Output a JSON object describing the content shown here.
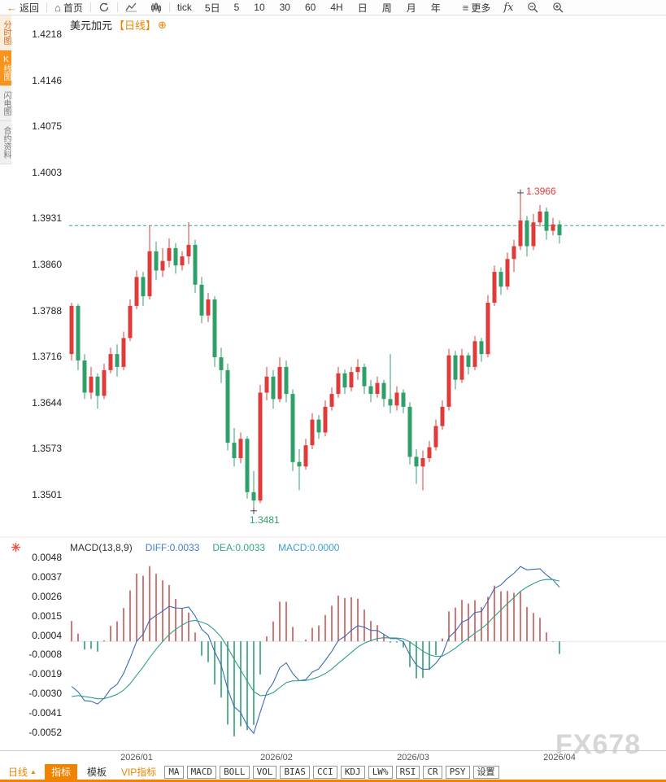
{
  "toolbar": {
    "back": "返回",
    "home": "首页",
    "tick": "tick",
    "five_day": "5日",
    "periods": [
      "5",
      "10",
      "30",
      "60",
      "4H",
      "日",
      "周",
      "月",
      "年"
    ],
    "more": "更多",
    "fx": "fx"
  },
  "icons": {
    "back": "←",
    "home": "⌂",
    "more": "≡",
    "add": "⊕",
    "up_triangle": "▲"
  },
  "sidebar": {
    "tabs": [
      {
        "label": "分时图",
        "kind": "hot"
      },
      {
        "label": "K线图",
        "kind": "active"
      },
      {
        "label": "闪电图",
        "kind": "plain"
      },
      {
        "label": "合约资料",
        "kind": "plain"
      }
    ]
  },
  "chart": {
    "title": "美元加元",
    "period_tag": "【日线】"
  },
  "colors": {
    "up": "#e03b3b",
    "down": "#2fa06a",
    "diff_line": "#3a6db5",
    "dea_line": "#2f9e8f",
    "hist_up": "#cc5555",
    "hist_down": "#2f9e74",
    "current_price_line": "#3a9e9e",
    "accent": "#f08300",
    "annotation_high": "#e03b3b",
    "annotation_low": "#2fa06a"
  },
  "chart_data": [
    {
      "type": "candlestick",
      "title": "美元加元",
      "period": "日线",
      "y_ticks": [
        "1.4218",
        "1.4146",
        "1.4075",
        "1.4003",
        "1.3931",
        "1.3860",
        "1.3788",
        "1.3716",
        "1.3644",
        "1.3573",
        "1.3501"
      ],
      "x_labels": [
        {
          "label": "2026/01",
          "index": 10
        },
        {
          "label": "2026/02",
          "index": 31.5
        },
        {
          "label": "2026/03",
          "index": 52.5
        },
        {
          "label": "2026/04",
          "index": 75
        }
      ],
      "current_price": 1.392,
      "annotations": {
        "high": {
          "index": 69,
          "price": 1.3966,
          "label": "1.3966"
        },
        "low": {
          "index": 28,
          "price": 1.3481,
          "label": "1.3481"
        }
      },
      "candles": [
        [
          1.372,
          1.38,
          1.371,
          1.3795
        ],
        [
          1.3795,
          1.3798,
          1.3695,
          1.371
        ],
        [
          1.371,
          1.372,
          1.365,
          1.366
        ],
        [
          1.366,
          1.37,
          1.365,
          1.3685
        ],
        [
          1.3685,
          1.369,
          1.3635,
          1.3655
        ],
        [
          1.3655,
          1.3705,
          1.365,
          1.3695
        ],
        [
          1.3695,
          1.373,
          1.369,
          1.372
        ],
        [
          1.372,
          1.3735,
          1.3685,
          1.37
        ],
        [
          1.37,
          1.3755,
          1.3695,
          1.3745
        ],
        [
          1.3745,
          1.3805,
          1.374,
          1.3795
        ],
        [
          1.3795,
          1.385,
          1.379,
          1.384
        ],
        [
          1.384,
          1.3848,
          1.3795,
          1.381
        ],
        [
          1.381,
          1.392,
          1.3805,
          1.388
        ],
        [
          1.388,
          1.3895,
          1.3835,
          1.385
        ],
        [
          1.385,
          1.3885,
          1.384,
          1.3865
        ],
        [
          1.3865,
          1.39,
          1.3855,
          1.3885
        ],
        [
          1.3885,
          1.3893,
          1.3845,
          1.3858
        ],
        [
          1.3858,
          1.388,
          1.385,
          1.3872
        ],
        [
          1.3872,
          1.3925,
          1.386,
          1.389
        ],
        [
          1.389,
          1.3898,
          1.3815,
          1.3828
        ],
        [
          1.3828,
          1.384,
          1.3768,
          1.378
        ],
        [
          1.378,
          1.3815,
          1.377,
          1.3805
        ],
        [
          1.3805,
          1.381,
          1.37,
          1.3715
        ],
        [
          1.3715,
          1.373,
          1.3675,
          1.3695
        ],
        [
          1.3695,
          1.3705,
          1.357,
          1.3582
        ],
        [
          1.3582,
          1.3605,
          1.3545,
          1.3558
        ],
        [
          1.3558,
          1.3598,
          1.355,
          1.3588
        ],
        [
          1.3588,
          1.3592,
          1.3495,
          1.3505
        ],
        [
          1.3505,
          1.3538,
          1.3481,
          1.3492
        ],
        [
          1.3492,
          1.3672,
          1.3488,
          1.366
        ],
        [
          1.366,
          1.37,
          1.3648,
          1.3685
        ],
        [
          1.3685,
          1.3695,
          1.3635,
          1.365
        ],
        [
          1.365,
          1.3715,
          1.3645,
          1.37
        ],
        [
          1.37,
          1.371,
          1.3645,
          1.3658
        ],
        [
          1.3658,
          1.3665,
          1.3538,
          1.3552
        ],
        [
          1.3552,
          1.3572,
          1.3508,
          1.3545
        ],
        [
          1.3545,
          1.3588,
          1.354,
          1.3578
        ],
        [
          1.3578,
          1.3628,
          1.3572,
          1.3618
        ],
        [
          1.3618,
          1.3625,
          1.3588,
          1.3598
        ],
        [
          1.3598,
          1.3648,
          1.3592,
          1.3638
        ],
        [
          1.3638,
          1.3668,
          1.3632,
          1.3658
        ],
        [
          1.3658,
          1.37,
          1.3652,
          1.369
        ],
        [
          1.369,
          1.3696,
          1.3658,
          1.3668
        ],
        [
          1.3668,
          1.37,
          1.3662,
          1.3692
        ],
        [
          1.3692,
          1.3712,
          1.368,
          1.37
        ],
        [
          1.37,
          1.3705,
          1.3658,
          1.367
        ],
        [
          1.367,
          1.368,
          1.3645,
          1.3658
        ],
        [
          1.3658,
          1.3685,
          1.3652,
          1.3675
        ],
        [
          1.3675,
          1.368,
          1.3638,
          1.365
        ],
        [
          1.365,
          1.372,
          1.3628,
          1.364
        ],
        [
          1.364,
          1.367,
          1.3632,
          1.366
        ],
        [
          1.366,
          1.3665,
          1.3628,
          1.3638
        ],
        [
          1.3638,
          1.3645,
          1.3548,
          1.356
        ],
        [
          1.356,
          1.3572,
          1.3518,
          1.3545
        ],
        [
          1.3545,
          1.357,
          1.3508,
          1.3558
        ],
        [
          1.3558,
          1.3585,
          1.3552,
          1.3575
        ],
        [
          1.3575,
          1.3618,
          1.357,
          1.3608
        ],
        [
          1.3608,
          1.3648,
          1.3602,
          1.3638
        ],
        [
          1.3638,
          1.3728,
          1.3632,
          1.3718
        ],
        [
          1.3718,
          1.3725,
          1.3665,
          1.368
        ],
        [
          1.368,
          1.3728,
          1.3675,
          1.3718
        ],
        [
          1.3718,
          1.3722,
          1.3688,
          1.37
        ],
        [
          1.37,
          1.3748,
          1.3695,
          1.374
        ],
        [
          1.374,
          1.3745,
          1.3708,
          1.372
        ],
        [
          1.372,
          1.3812,
          1.3715,
          1.38
        ],
        [
          1.38,
          1.3858,
          1.3795,
          1.3848
        ],
        [
          1.3848,
          1.3855,
          1.3812,
          1.3825
        ],
        [
          1.3825,
          1.3878,
          1.382,
          1.3868
        ],
        [
          1.3868,
          1.3898,
          1.3848,
          1.3888
        ],
        [
          1.3888,
          1.3966,
          1.3882,
          1.3928
        ],
        [
          1.3928,
          1.3935,
          1.3872,
          1.3888
        ],
        [
          1.3888,
          1.3938,
          1.3882,
          1.3925
        ],
        [
          1.3925,
          1.3952,
          1.3918,
          1.3942
        ],
        [
          1.3942,
          1.3948,
          1.3898,
          1.3912
        ],
        [
          1.3912,
          1.3932,
          1.3905,
          1.3922
        ],
        [
          1.3922,
          1.3928,
          1.3892,
          1.3905
        ]
      ]
    },
    {
      "type": "macd",
      "label": "MACD(13,8,9)",
      "params": {
        "fast": 8,
        "slow": 13,
        "signal": 9
      },
      "seed": {
        "diff": -0.003,
        "dea": -0.0033
      },
      "displayed": {
        "diff": "DIFF:0.0033",
        "dea": "DEA:0.0033",
        "macd": "MACD:0.0000"
      },
      "y_ticks": [
        "0.0048",
        "0.0037",
        "0.0026",
        "0.0015",
        "0.0004",
        "-0.0008",
        "-0.0019",
        "-0.0030",
        "-0.0041",
        "-0.0052"
      ]
    }
  ],
  "bottom": {
    "period": "日线",
    "tabs": [
      {
        "label": "指标",
        "kind": "active"
      },
      {
        "label": "模板",
        "kind": "plain"
      },
      {
        "label": "VIP指标",
        "kind": "vip"
      },
      {
        "label": "MA",
        "kind": "box"
      },
      {
        "label": "MACD",
        "kind": "box"
      },
      {
        "label": "BOLL",
        "kind": "box"
      },
      {
        "label": "VOL",
        "kind": "box"
      },
      {
        "label": "BIAS",
        "kind": "box"
      },
      {
        "label": "CCI",
        "kind": "box"
      },
      {
        "label": "KDJ",
        "kind": "box"
      },
      {
        "label": "LW%",
        "kind": "box"
      },
      {
        "label": "RSI",
        "kind": "box"
      },
      {
        "label": "CR",
        "kind": "box"
      },
      {
        "label": "PSY",
        "kind": "box"
      },
      {
        "label": "设置",
        "kind": "box"
      }
    ]
  },
  "watermark": {
    "text": "FX678"
  }
}
